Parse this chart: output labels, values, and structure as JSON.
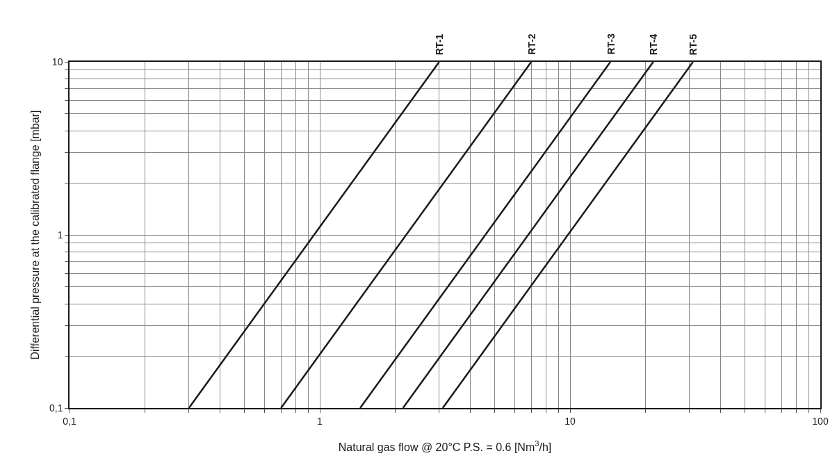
{
  "chart_data": {
    "type": "line",
    "xlabel": "Natural gas flow @ 20°C P.S. = 0.6 [Nm$^{3}$/h]",
    "ylabel": "Differential pressure at the calibrated flange [mbar]",
    "log": "xy",
    "grid": true,
    "legend": false,
    "marker": "none",
    "line_style": "solid",
    "xlim": [
      0.1,
      100
    ],
    "ylim": [
      0.1,
      10
    ],
    "xticks": [
      {
        "value": 0.1,
        "label": "0,1"
      },
      {
        "value": 0.2,
        "label": null
      },
      {
        "value": 0.3,
        "label": null
      },
      {
        "value": 0.4,
        "label": null
      },
      {
        "value": 0.5,
        "label": null
      },
      {
        "value": 0.6,
        "label": null
      },
      {
        "value": 0.7,
        "label": null
      },
      {
        "value": 0.8,
        "label": null
      },
      {
        "value": 0.9,
        "label": null
      },
      1,
      {
        "value": 2,
        "label": null
      },
      {
        "value": 3,
        "label": null
      },
      {
        "value": 4,
        "label": null
      },
      {
        "value": 5,
        "label": null
      },
      {
        "value": 6,
        "label": null
      },
      {
        "value": 7,
        "label": null
      },
      {
        "value": 8,
        "label": null
      },
      {
        "value": 9,
        "label": null
      },
      10,
      {
        "value": 20,
        "label": null
      },
      {
        "value": 30,
        "label": null
      },
      {
        "value": 40,
        "label": null
      },
      {
        "value": 50,
        "label": null
      },
      {
        "value": 60,
        "label": null
      },
      {
        "value": 70,
        "label": null
      },
      {
        "value": 80,
        "label": null
      },
      {
        "value": 90,
        "label": null
      },
      100
    ],
    "yticks": [
      {
        "value": 0.1,
        "label": "0,1"
      },
      {
        "value": 0.2,
        "label": null
      },
      {
        "value": 0.3,
        "label": null
      },
      {
        "value": 0.4,
        "label": null
      },
      {
        "value": 0.5,
        "label": null
      },
      {
        "value": 0.6,
        "label": null
      },
      {
        "value": 0.7,
        "label": null
      },
      {
        "value": 0.8,
        "label": null
      },
      {
        "value": 0.9,
        "label": null
      },
      1,
      {
        "value": 2,
        "label": null
      },
      {
        "value": 3,
        "label": null
      },
      {
        "value": 4,
        "label": null
      },
      {
        "value": 5,
        "label": null
      },
      {
        "value": 6,
        "label": null
      },
      {
        "value": 7,
        "label": null
      },
      {
        "value": 8,
        "label": null
      },
      {
        "value": 9,
        "label": null
      },
      10
    ],
    "series": [
      {
        "name": "RT-1",
        "color": "#1a1a1a",
        "x": [
          0.3,
          3
        ],
        "values": [
          0.1,
          10
        ]
      },
      {
        "name": "RT-2",
        "color": "#1a1a1a",
        "x": [
          0.7,
          7
        ],
        "values": [
          0.1,
          10
        ]
      },
      {
        "name": "RT-3",
        "color": "#1a1a1a",
        "x": [
          1.45,
          14.5
        ],
        "values": [
          0.1,
          10
        ]
      },
      {
        "name": "RT-4",
        "color": "#1a1a1a",
        "x": [
          2.15,
          21.5
        ],
        "values": [
          0.1,
          10
        ]
      },
      {
        "name": "RT-5",
        "color": "#1a1a1a",
        "x": [
          3.1,
          31
        ],
        "values": [
          0.1,
          10
        ]
      }
    ]
  }
}
